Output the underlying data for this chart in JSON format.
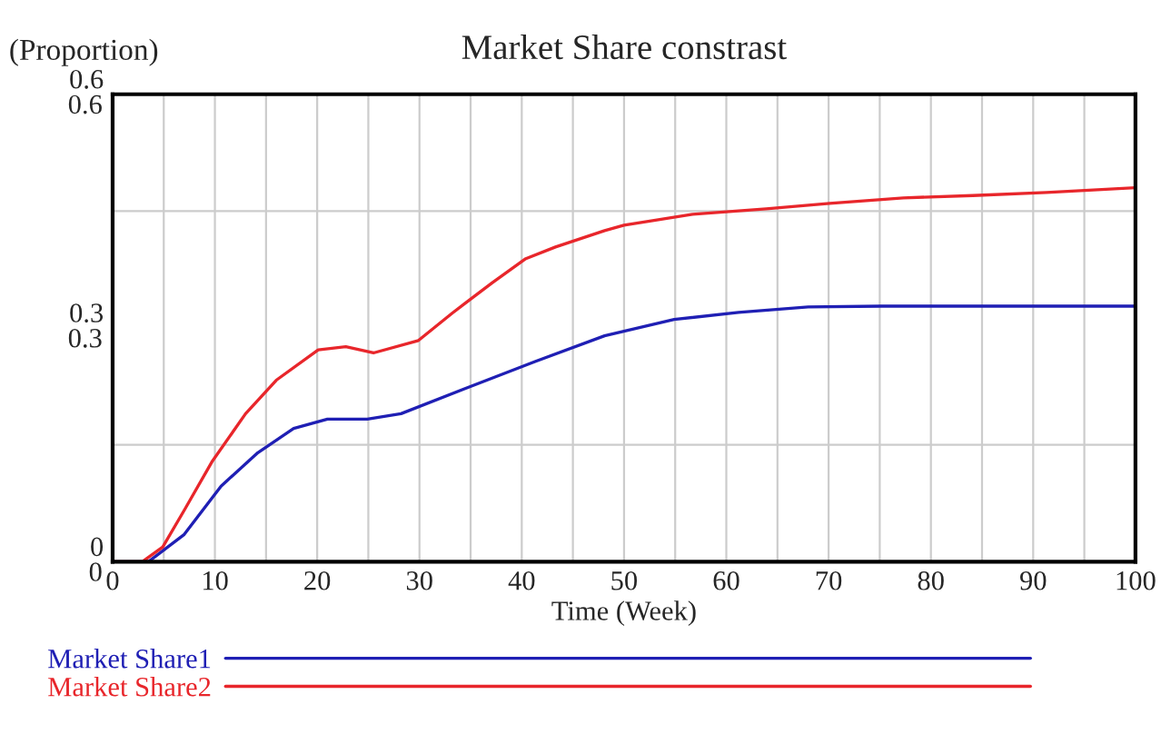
{
  "chart_data": {
    "type": "line",
    "title": "Market Share constrast",
    "xlabel": "Time (Week)",
    "ylabel": "(Proportion)",
    "xlim": [
      0,
      100
    ],
    "xticks": [
      0,
      {
        "value": 5,
        "label": null
      },
      10,
      {
        "value": 15,
        "label": null
      },
      20,
      {
        "value": 25,
        "label": null
      },
      30,
      {
        "value": 35,
        "label": null
      },
      40,
      {
        "value": 45,
        "label": null
      },
      50,
      {
        "value": 55,
        "label": null
      },
      60,
      {
        "value": 65,
        "label": null
      },
      70,
      {
        "value": 75,
        "label": null
      },
      80,
      {
        "value": 85,
        "label": null
      },
      90,
      {
        "value": 95,
        "label": null
      },
      100
    ],
    "ylim": [
      0,
      0.6
    ],
    "yticks": [
      0,
      {
        "value": 0.15,
        "label": null
      },
      0.3,
      {
        "value": 0.45,
        "label": null
      },
      0.6
    ],
    "y2lim": [
      0,
      0.6
    ],
    "y2ticks": [
      0,
      0.3,
      0.6
    ],
    "grid": true,
    "legend": "bottom",
    "line_style": "solid",
    "series": [
      {
        "name": "Market Share1",
        "color": "#1f1fb4",
        "x": [
          0,
          3.5,
          7.0,
          10.6,
          14.2,
          17.7,
          21,
          24.9,
          28.2,
          34.4,
          41.3,
          48.1,
          54.9,
          61.2,
          68,
          75.2,
          100
        ],
        "values": [
          0,
          0,
          0.035,
          0.097,
          0.14,
          0.171,
          0.183,
          0.183,
          0.19,
          0.222,
          0.257,
          0.29,
          0.311,
          0.32,
          0.327,
          0.328,
          0.328
        ]
      },
      {
        "name": "Market Share2",
        "color": "#e8262b",
        "x": [
          0,
          2.9,
          4.9,
          7.0,
          9.7,
          13,
          16,
          20.1,
          22.8,
          25.5,
          29.9,
          33.2,
          37.1,
          40.4,
          43.3,
          48.1,
          50,
          56.7,
          63.9,
          70.1,
          77.3,
          84.1,
          91.3,
          100
        ],
        "values": [
          0,
          0,
          0.019,
          0.066,
          0.128,
          0.19,
          0.233,
          0.272,
          0.276,
          0.268,
          0.284,
          0.319,
          0.358,
          0.389,
          0.404,
          0.425,
          0.432,
          0.446,
          0.453,
          0.46,
          0.467,
          0.47,
          0.474,
          0.48
        ]
      }
    ]
  }
}
